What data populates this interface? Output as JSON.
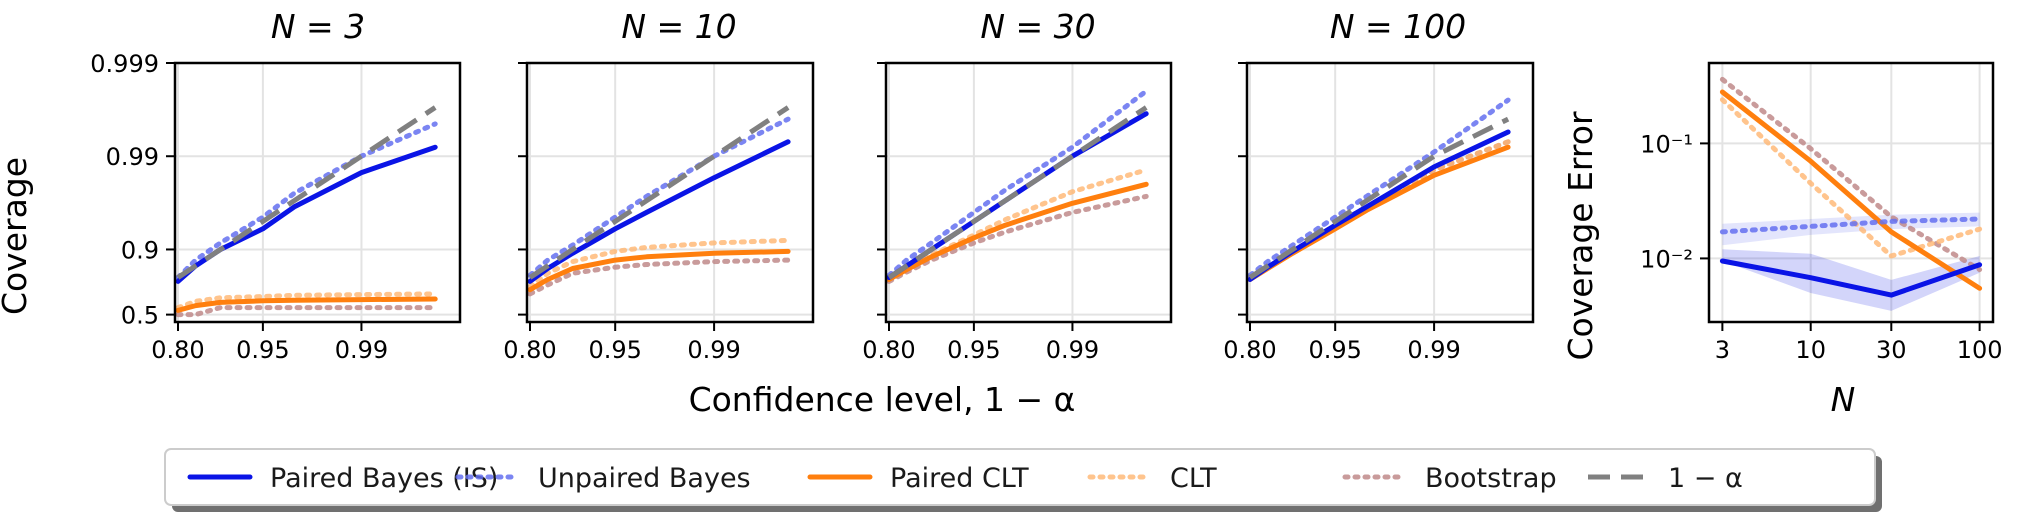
{
  "figure": {
    "xlabel": "Confidence level, 1 − α",
    "ylabel": "Coverage"
  },
  "series_styles": {
    "paired_bayes": {
      "label": "Paired Bayes (IS)",
      "color": "#0a14e6",
      "dash": "solid",
      "opacity": 1.0
    },
    "unpaired_bayes": {
      "label": "Unpaired Bayes",
      "color": "#6470f0",
      "dash": "dotted",
      "opacity": 0.85
    },
    "paired_clt": {
      "label": "Paired CLT",
      "color": "#ff7f0e",
      "dash": "solid",
      "opacity": 1.0
    },
    "clt": {
      "label": "CLT",
      "color": "#ffb570",
      "dash": "dotted",
      "opacity": 0.8
    },
    "bootstrap": {
      "label": "Bootstrap",
      "color": "#c08a8a",
      "dash": "dotted",
      "opacity": 0.85
    },
    "nominal": {
      "label": "1 − α",
      "color": "#808080",
      "dash": "dashed",
      "opacity": 1.0
    }
  },
  "legend": {
    "placement": "bottom-center",
    "order": [
      "paired_bayes",
      "unpaired_bayes",
      "paired_clt",
      "clt",
      "bootstrap",
      "nominal"
    ]
  },
  "chart_data": [
    {
      "type": "line",
      "title": "N = 3",
      "ylabel": "Coverage",
      "x_scale": "log(1-x)",
      "y_scale": "log(1-y)",
      "xticks": [
        0.8,
        0.95,
        0.99
      ],
      "xtick_labels": [
        "0.80",
        "0.95",
        "0.99"
      ],
      "yticks": [
        0.5,
        0.9,
        0.99,
        0.999
      ],
      "ytick_labels": [
        "0.5",
        "0.9",
        "0.99",
        "0.999"
      ],
      "xlim": [
        0.79,
        0.998
      ],
      "ylim": [
        0.4,
        0.999
      ],
      "grid": true,
      "x": [
        0.8,
        0.85,
        0.9,
        0.95,
        0.97,
        0.99,
        0.997
      ],
      "series": [
        {
          "key": "paired_bayes",
          "values": [
            0.78,
            0.85,
            0.9,
            0.94,
            0.965,
            0.985,
            0.992
          ]
        },
        {
          "key": "unpaired_bayes",
          "values": [
            0.8,
            0.87,
            0.915,
            0.955,
            0.975,
            0.99,
            0.9955
          ]
        },
        {
          "key": "nominal",
          "values": [
            0.8,
            0.85,
            0.9,
            0.95,
            0.97,
            0.99,
            0.997
          ]
        },
        {
          "key": "paired_clt",
          "values": [
            0.55,
            0.6,
            0.63,
            0.645,
            0.65,
            0.655,
            0.66
          ]
        },
        {
          "key": "clt",
          "values": [
            0.58,
            0.64,
            0.67,
            0.68,
            0.69,
            0.695,
            0.7
          ]
        },
        {
          "key": "bootstrap",
          "values": [
            0.5,
            0.5,
            0.58,
            0.58,
            0.58,
            0.58,
            0.58
          ]
        }
      ]
    },
    {
      "type": "line",
      "title": "N = 10",
      "x_scale": "log(1-x)",
      "y_scale": "log(1-y)",
      "xticks": [
        0.8,
        0.95,
        0.99
      ],
      "xtick_labels": [
        "0.80",
        "0.95",
        "0.99"
      ],
      "yticks": [
        0.5,
        0.9,
        0.99,
        0.999
      ],
      "xlim": [
        0.79,
        0.998
      ],
      "ylim": [
        0.4,
        0.999
      ],
      "grid": true,
      "x": [
        0.8,
        0.85,
        0.9,
        0.95,
        0.97,
        0.99,
        0.997
      ],
      "series": [
        {
          "key": "paired_bayes",
          "values": [
            0.78,
            0.84,
            0.89,
            0.94,
            0.96,
            0.983,
            0.993
          ]
        },
        {
          "key": "unpaired_bayes",
          "values": [
            0.81,
            0.87,
            0.91,
            0.955,
            0.973,
            0.99,
            0.996
          ]
        },
        {
          "key": "nominal",
          "values": [
            0.8,
            0.85,
            0.9,
            0.95,
            0.97,
            0.99,
            0.997
          ]
        },
        {
          "key": "paired_clt",
          "values": [
            0.73,
            0.79,
            0.84,
            0.87,
            0.88,
            0.89,
            0.895
          ]
        },
        {
          "key": "clt",
          "values": [
            0.75,
            0.82,
            0.865,
            0.895,
            0.905,
            0.915,
            0.92
          ]
        },
        {
          "key": "bootstrap",
          "values": [
            0.7,
            0.76,
            0.82,
            0.845,
            0.855,
            0.865,
            0.87
          ]
        }
      ]
    },
    {
      "type": "line",
      "title": "N = 30",
      "x_scale": "log(1-x)",
      "y_scale": "log(1-y)",
      "xticks": [
        0.8,
        0.95,
        0.99
      ],
      "xtick_labels": [
        "0.80",
        "0.95",
        "0.99"
      ],
      "yticks": [
        0.5,
        0.9,
        0.99,
        0.999
      ],
      "xlim": [
        0.79,
        0.998
      ],
      "ylim": [
        0.4,
        0.999
      ],
      "grid": true,
      "x": [
        0.8,
        0.85,
        0.9,
        0.95,
        0.97,
        0.99,
        0.997
      ],
      "series": [
        {
          "key": "paired_bayes",
          "values": [
            0.8,
            0.85,
            0.9,
            0.95,
            0.97,
            0.99,
            0.9965
          ]
        },
        {
          "key": "unpaired_bayes",
          "values": [
            0.81,
            0.87,
            0.915,
            0.96,
            0.977,
            0.992,
            0.998
          ]
        },
        {
          "key": "nominal",
          "values": [
            0.8,
            0.85,
            0.9,
            0.95,
            0.97,
            0.99,
            0.997
          ]
        },
        {
          "key": "paired_clt",
          "values": [
            0.79,
            0.835,
            0.88,
            0.925,
            0.945,
            0.968,
            0.98
          ]
        },
        {
          "key": "clt",
          "values": [
            0.8,
            0.84,
            0.885,
            0.93,
            0.952,
            0.976,
            0.986
          ]
        },
        {
          "key": "bootstrap",
          "values": [
            0.78,
            0.825,
            0.87,
            0.915,
            0.935,
            0.96,
            0.973
          ]
        }
      ]
    },
    {
      "type": "line",
      "title": "N = 100",
      "x_scale": "log(1-x)",
      "y_scale": "log(1-y)",
      "xticks": [
        0.8,
        0.95,
        0.99
      ],
      "xtick_labels": [
        "0.80",
        "0.95",
        "0.99"
      ],
      "yticks": [
        0.5,
        0.9,
        0.99,
        0.999
      ],
      "xlim": [
        0.79,
        0.998
      ],
      "ylim": [
        0.4,
        0.999
      ],
      "grid": true,
      "x": [
        0.8,
        0.85,
        0.9,
        0.95,
        0.97,
        0.99,
        0.997
      ],
      "series": [
        {
          "key": "paired_bayes",
          "values": [
            0.79,
            0.845,
            0.895,
            0.945,
            0.965,
            0.987,
            0.9945
          ]
        },
        {
          "key": "unpaired_bayes",
          "values": [
            0.81,
            0.865,
            0.91,
            0.955,
            0.973,
            0.991,
            0.9975
          ]
        },
        {
          "key": "nominal",
          "values": [
            0.8,
            0.85,
            0.9,
            0.95,
            0.97,
            0.99,
            0.996
          ]
        },
        {
          "key": "paired_clt",
          "values": [
            0.79,
            0.84,
            0.89,
            0.94,
            0.962,
            0.984,
            0.992
          ]
        },
        {
          "key": "clt",
          "values": [
            0.795,
            0.845,
            0.895,
            0.945,
            0.965,
            0.986,
            0.993
          ]
        },
        {
          "key": "bootstrap",
          "values": [
            0.795,
            0.845,
            0.895,
            0.945,
            0.965,
            0.986,
            0.993
          ]
        }
      ]
    },
    {
      "type": "line",
      "title": "",
      "xlabel": "N",
      "ylabel": "Coverage Error",
      "x_scale": "log",
      "y_scale": "log",
      "xticks": [
        3,
        10,
        30,
        100
      ],
      "xtick_labels": [
        "3",
        "10",
        "30",
        "100"
      ],
      "yticks": [
        0.01,
        0.1
      ],
      "ytick_labels": [
        "10⁻²",
        "10⁻¹"
      ],
      "xlim": [
        2.5,
        120
      ],
      "ylim": [
        0.0028,
        0.5
      ],
      "grid": true,
      "x": [
        3,
        10,
        30,
        100
      ],
      "series": [
        {
          "key": "paired_bayes",
          "values": [
            0.0095,
            0.0068,
            0.0048,
            0.0088
          ]
        },
        {
          "key": "unpaired_bayes",
          "values": [
            0.017,
            0.019,
            0.021,
            0.022
          ]
        },
        {
          "key": "paired_clt",
          "values": [
            0.28,
            0.07,
            0.017,
            0.0055
          ]
        },
        {
          "key": "clt",
          "values": [
            0.24,
            0.045,
            0.0105,
            0.018
          ]
        },
        {
          "key": "bootstrap",
          "values": [
            0.36,
            0.09,
            0.023,
            0.008
          ]
        }
      ],
      "bands": [
        {
          "key": "paired_bayes",
          "lower": [
            0.0095,
            0.005,
            0.0035,
            0.0075
          ],
          "upper": [
            0.012,
            0.011,
            0.0065,
            0.0105
          ]
        },
        {
          "key": "unpaired_bayes",
          "lower": [
            0.013,
            0.016,
            0.018,
            0.019
          ],
          "upper": [
            0.02,
            0.022,
            0.024,
            0.025
          ]
        }
      ]
    }
  ]
}
